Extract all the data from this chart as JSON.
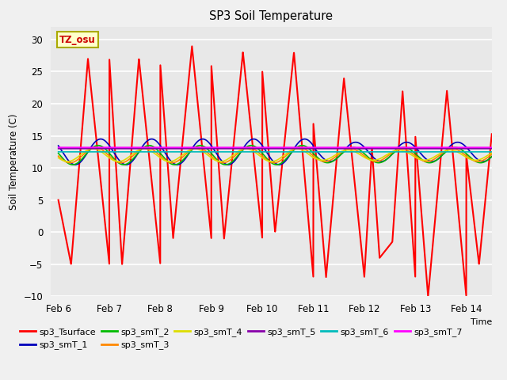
{
  "title": "SP3 Soil Temperature",
  "ylabel": "Soil Temperature (C)",
  "xlabel": "Time",
  "ylim": [
    -10,
    32
  ],
  "yticks": [
    -10,
    -5,
    0,
    5,
    10,
    15,
    20,
    25,
    30
  ],
  "xtick_labels": [
    "Feb 6",
    "Feb 7",
    "Feb 8",
    "Feb 9",
    "Feb 10",
    "Feb 11",
    "Feb 12",
    "Feb 13",
    "Feb 14"
  ],
  "xtick_positions": [
    6,
    7,
    8,
    9,
    10,
    11,
    12,
    13,
    14
  ],
  "annotation_text": "TZ_osu",
  "annotation_color": "#cc0000",
  "annotation_bg": "#ffffcc",
  "annotation_border": "#aaaa00",
  "plot_bg": "#e8e8e8",
  "fig_bg": "#f0f0f0",
  "series_colors": {
    "sp3_Tsurface": "#ff0000",
    "sp3_smT_1": "#0000bb",
    "sp3_smT_2": "#00bb00",
    "sp3_smT_3": "#ff8800",
    "sp3_smT_4": "#dddd00",
    "sp3_smT_5": "#8800aa",
    "sp3_smT_6": "#00bbbb",
    "sp3_smT_7": "#ff00ff"
  },
  "legend_order": [
    "sp3_Tsurface",
    "sp3_smT_1",
    "sp3_smT_2",
    "sp3_smT_3",
    "sp3_smT_4",
    "sp3_smT_5",
    "sp3_smT_6",
    "sp3_smT_7"
  ]
}
